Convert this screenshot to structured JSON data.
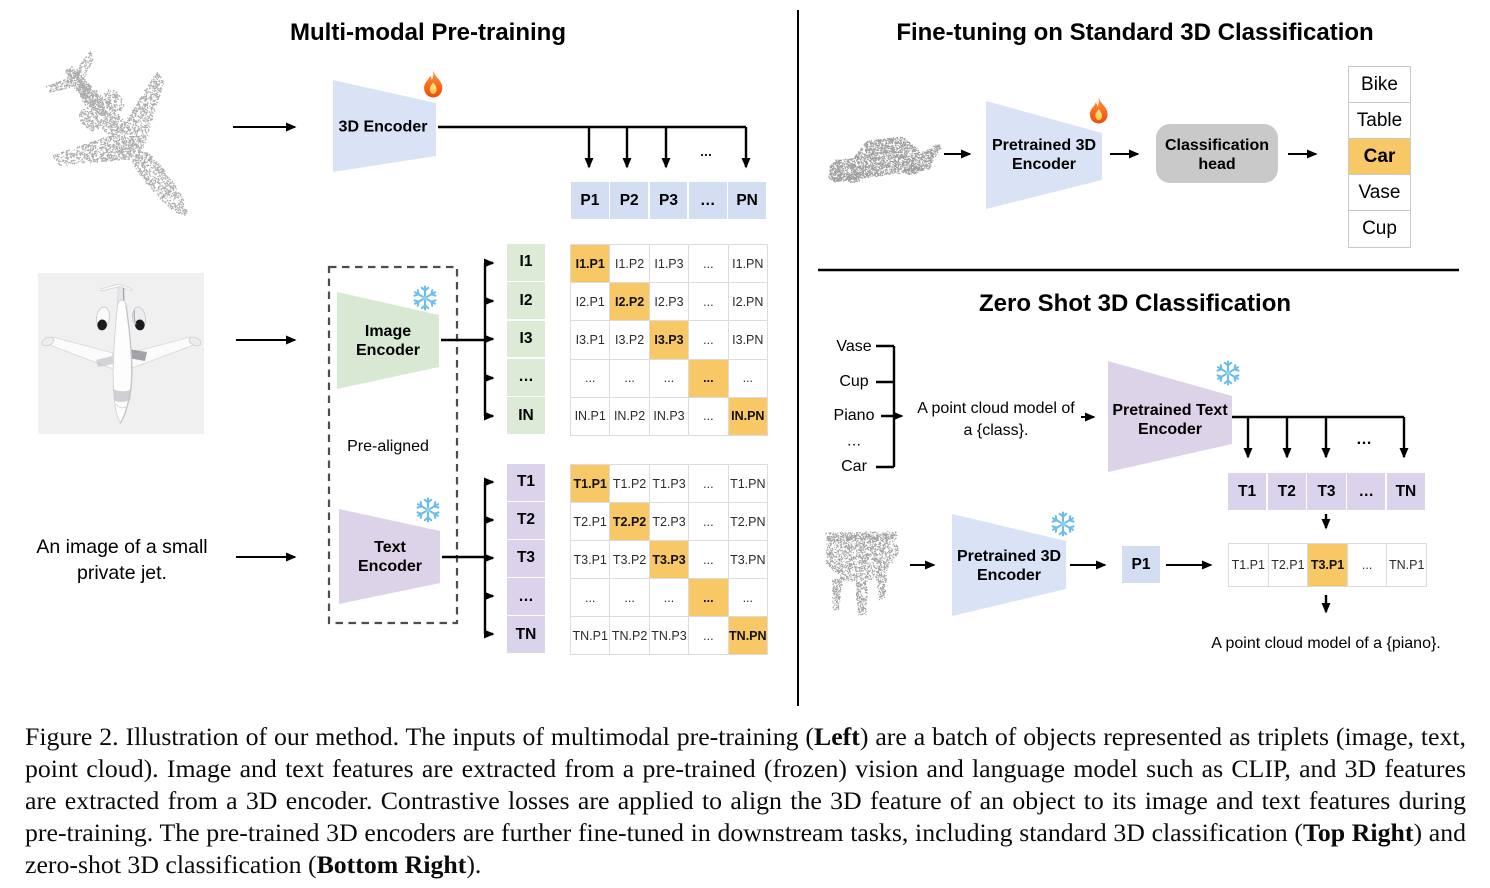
{
  "colors": {
    "blue_cell": "#d4def2",
    "blue_trapezoid": "#dae3f5",
    "green_cell": "#dcead6",
    "green_trapezoid": "#d8e8d2",
    "purple_cell": "#dbd2ec",
    "purple_trapezoid": "#dcd3e8",
    "highlight_orange": "#f8c766",
    "head_gray": "#c9c9c9",
    "pointcloud_gray": "#a9a9a9"
  },
  "icons": {
    "fire": "fire-icon",
    "snowflake": "snowflake-icon"
  },
  "left_panel": {
    "title": "Multi-modal Pre-training",
    "encoder3d_label": "3D Encoder",
    "image_encoder_label": [
      "Image",
      "Encoder"
    ],
    "text_encoder_label": [
      "Text",
      "Encoder"
    ],
    "pre_aligned": "Pre-aligned",
    "image_caption": [
      "An image of a small",
      "private jet."
    ],
    "branch_ellipsis": "...",
    "p_row": [
      "P1",
      "P2",
      "P3",
      "…",
      "PN"
    ],
    "i_col": [
      "I1",
      "I2",
      "I3",
      "…",
      "IN"
    ],
    "t_col": [
      "T1",
      "T2",
      "T3",
      "…",
      "TN"
    ],
    "ip_matrix": [
      [
        "I1.P1",
        "I1.P2",
        "I1.P3",
        "...",
        "I1.PN"
      ],
      [
        "I2.P1",
        "I2.P2",
        "I2.P3",
        "...",
        "I2.PN"
      ],
      [
        "I3.P1",
        "I3.P2",
        "I3.P3",
        "...",
        "I3.PN"
      ],
      [
        "...",
        "...",
        "...",
        "...",
        "..."
      ],
      [
        "IN.P1",
        "IN.P2",
        "IN.P3",
        "...",
        "IN.PN"
      ]
    ],
    "tp_matrix": [
      [
        "T1.P1",
        "T1.P2",
        "T1.P3",
        "...",
        "T1.PN"
      ],
      [
        "T2.P1",
        "T2.P2",
        "T2.P3",
        "...",
        "T2.PN"
      ],
      [
        "T3.P1",
        "T3.P2",
        "T3.P3",
        "...",
        "T3.PN"
      ],
      [
        "...",
        "...",
        "...",
        "...",
        "..."
      ],
      [
        "TN.P1",
        "TN.P2",
        "TN.P3",
        "...",
        "TN.PN"
      ]
    ]
  },
  "top_right_panel": {
    "title": "Fine-tuning on Standard 3D Classification",
    "encoder_label": [
      "Pretrained 3D",
      "Encoder"
    ],
    "head_label": [
      "Classification",
      "head"
    ],
    "classes": [
      "Bike",
      "Table",
      "Car",
      "Vase",
      "Cup"
    ],
    "highlighted_class": "Car"
  },
  "bottom_right_panel": {
    "title": "Zero Shot 3D Classification",
    "class_words": [
      "Vase",
      "Cup",
      "Piano",
      "…",
      "Car"
    ],
    "prompt": [
      "A point cloud model of",
      "a {class}."
    ],
    "text_encoder_label": [
      "Pretrained Text",
      "Encoder"
    ],
    "encoder3d_label": [
      "Pretrained 3D",
      "Encoder"
    ],
    "p1": "P1",
    "drop_ellipsis": "…",
    "t_row": [
      "T1",
      "T2",
      "T3",
      "…",
      "TN"
    ],
    "sim_row": [
      "T1.P1",
      "T2.P1",
      "T3.P1",
      "...",
      "TN.P1"
    ],
    "sim_highlight_index": 2,
    "result": "A point cloud model of a {piano}."
  },
  "caption": {
    "lines": [
      [
        {
          "text": "Figure 2. Illustration of our method. The inputs of multimodal pre-training (",
          "bold": false
        },
        {
          "text": "Left",
          "bold": true
        },
        {
          "text": ") are a batch of objects represented as triplets (image, text,",
          "bold": false
        }
      ],
      [
        {
          "text": "point cloud). Image and text features are extracted from a pre-trained (frozen) vision and language model such as CLIP, and 3D features",
          "bold": false
        }
      ],
      [
        {
          "text": "are extracted from a 3D encoder. Contrastive losses are applied to align the 3D feature of an object to its image and text features during",
          "bold": false
        }
      ],
      [
        {
          "text": "pre-training. The pre-trained 3D encoders are further fine-tuned in downstream tasks, including standard 3D classification (",
          "bold": false
        },
        {
          "text": "Top Right",
          "bold": true
        },
        {
          "text": ") and",
          "bold": false
        }
      ],
      [
        {
          "text": "zero-shot 3D classification (",
          "bold": false
        },
        {
          "text": "Bottom Right",
          "bold": true
        },
        {
          "text": ").",
          "bold": false
        }
      ]
    ]
  }
}
